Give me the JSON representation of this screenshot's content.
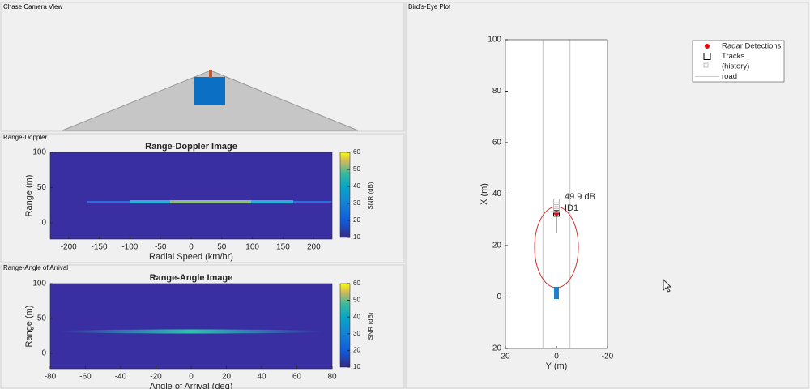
{
  "panels": {
    "chase": "Chase Camera View",
    "doppler": "Range-Doppler",
    "angle": "Range-Angle of Arrival",
    "birds": "Bird's-Eye Plot"
  },
  "chart_data": [
    {
      "type": "heatmap",
      "title": "Range-Doppler Image",
      "x_label": "Radial Speed (km/hr)",
      "y_label": "Range (m)",
      "xlim": [
        -230,
        230
      ],
      "xticks": [
        -200,
        -150,
        -100,
        -50,
        0,
        50,
        100,
        150,
        200
      ],
      "ylim": [
        -23,
        100
      ],
      "yticks": [
        0,
        50,
        100
      ],
      "colorbar": {
        "label": "SNR (dB)",
        "lim": [
          10,
          60
        ],
        "ticks": [
          10,
          20,
          30,
          40,
          50,
          60
        ]
      }
    },
    {
      "type": "heatmap",
      "title": "Range-Angle Image",
      "x_label": "Angle of Arrival (deg)",
      "y_label": "Range (m)",
      "xlim": [
        -80,
        80
      ],
      "xticks": [
        -80,
        -60,
        -40,
        -20,
        0,
        20,
        40,
        60,
        80
      ],
      "ylim": [
        -22,
        100
      ],
      "yticks": [
        0,
        50,
        100
      ],
      "colorbar": {
        "label": "SNR (dB)",
        "lim": [
          10,
          60
        ],
        "ticks": [
          10,
          20,
          30,
          40,
          50,
          60
        ]
      }
    },
    {
      "type": "scatter",
      "x_label": "Y (m)",
      "y_label": "X (m)",
      "xlim": [
        20,
        -20
      ],
      "xticks": [
        20,
        0,
        -20
      ],
      "ylim": [
        -20,
        100
      ],
      "yticks": [
        -20,
        0,
        20,
        40,
        60,
        80,
        100
      ],
      "series": [
        {
          "name": "Radar Detections",
          "marker": "circle",
          "color": "#e8000b",
          "x": [
            0
          ],
          "values": [
            32.5
          ]
        },
        {
          "name": "Tracks",
          "marker": "square",
          "color": "#000000",
          "x": [
            0
          ],
          "values": [
            32.5
          ]
        },
        {
          "name": "(history)",
          "marker": "square",
          "color": "#bbbbbb",
          "x": [
            0,
            0,
            0
          ],
          "values": [
            34,
            35.5,
            37
          ]
        },
        {
          "name": "road",
          "marker": "line",
          "color": "#c8c8c8",
          "x": [
            5.3,
            5.3,
            null,
            -5.3,
            -5.3
          ],
          "values": [
            -20,
            100,
            null,
            -20,
            100
          ]
        }
      ],
      "annotations": [
        "49.9 dB",
        "ID1"
      ]
    }
  ]
}
